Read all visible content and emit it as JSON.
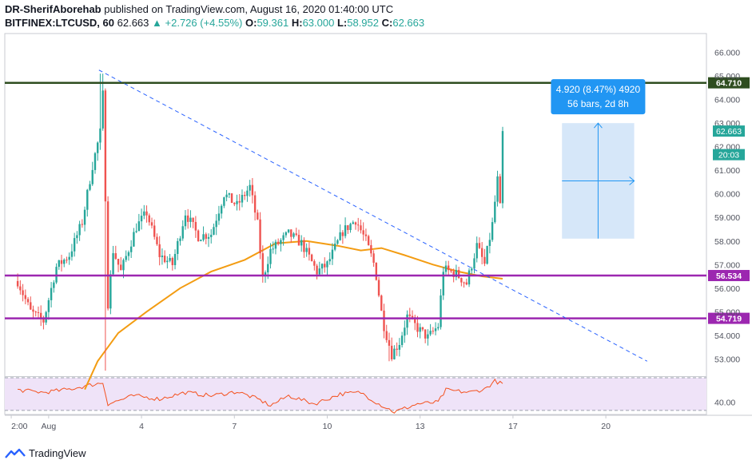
{
  "header": {
    "author": "DR-SherifAborehab",
    "published_text": "published on TradingView.com, August 16, 2020 01:40:00 UTC",
    "symbol": "BITFINEX:LTCUSD, 60",
    "last": "62.663",
    "arrow": "▲",
    "change": "+2.726 (+4.55%)",
    "o_label": "O:",
    "o_value": "59.361",
    "h_label": "H:",
    "h_value": "63.000",
    "l_label": "L:",
    "l_value": "58.952",
    "c_label": "C:",
    "c_value": "62.663"
  },
  "footer": {
    "brand": "TradingView"
  },
  "colors": {
    "up": "#26a69a",
    "down": "#ef5350",
    "ma": "#f39c12",
    "resistance": "#2e4d1f",
    "support": "#9c27b0",
    "trend": "#2962ff",
    "rsi": "#f4511e",
    "measure_bg": "#cfe3f8",
    "measure_box": "#2196f3"
  },
  "chart_data": {
    "type": "candlestick",
    "title": "BITFINEX:LTCUSD, 60",
    "ylim": [
      52.3,
      66.8
    ],
    "y_ticks": [
      53,
      54,
      55,
      56,
      57,
      58,
      59,
      60,
      61,
      62,
      63,
      64,
      65,
      66
    ],
    "y_tick_labels": [
      "53.000",
      "54.000",
      "55.000",
      "56.000",
      "57.000",
      "58.000",
      "59.000",
      "60.000",
      "61.000",
      "62.000",
      "63.000",
      "64.000",
      "65.000",
      "66.000"
    ],
    "x_range_hours": [
      -10,
      534
    ],
    "x_tick_labels": [
      {
        "label": "2:00",
        "hours": -5
      },
      {
        "label": "Aug",
        "hours": 24
      },
      {
        "label": "4",
        "hours": 96
      },
      {
        "label": "7",
        "hours": 168
      },
      {
        "label": "10",
        "hours": 240
      },
      {
        "label": "13",
        "hours": 312
      },
      {
        "label": "17",
        "hours": 384
      },
      {
        "label": "20",
        "hours": 456
      }
    ],
    "candles": {
      "interval_hours": 1,
      "anchors": [
        {
          "h": 0,
          "p": 56.3
        },
        {
          "h": 10,
          "p": 55.0
        },
        {
          "h": 20,
          "p": 54.6
        },
        {
          "h": 30,
          "p": 56.9
        },
        {
          "h": 40,
          "p": 57.4
        },
        {
          "h": 50,
          "p": 58.8
        },
        {
          "h": 58,
          "p": 61.2
        },
        {
          "h": 64,
          "p": 62.6
        },
        {
          "h": 67,
          "p": 65.0
        },
        {
          "h": 69,
          "p": 54.8
        },
        {
          "h": 74,
          "p": 57.6
        },
        {
          "h": 80,
          "p": 56.7
        },
        {
          "h": 92,
          "p": 58.6
        },
        {
          "h": 100,
          "p": 59.2
        },
        {
          "h": 110,
          "p": 57.4
        },
        {
          "h": 120,
          "p": 57.0
        },
        {
          "h": 130,
          "p": 59.2
        },
        {
          "h": 140,
          "p": 58.2
        },
        {
          "h": 150,
          "p": 58.3
        },
        {
          "h": 160,
          "p": 60.0
        },
        {
          "h": 170,
          "p": 59.5
        },
        {
          "h": 180,
          "p": 60.3
        },
        {
          "h": 186,
          "p": 58.7
        },
        {
          "h": 190,
          "p": 56.4
        },
        {
          "h": 196,
          "p": 57.6
        },
        {
          "h": 210,
          "p": 58.3
        },
        {
          "h": 220,
          "p": 57.9
        },
        {
          "h": 232,
          "p": 56.7
        },
        {
          "h": 240,
          "p": 57.0
        },
        {
          "h": 252,
          "p": 58.4
        },
        {
          "h": 262,
          "p": 58.9
        },
        {
          "h": 270,
          "p": 58.0
        },
        {
          "h": 277,
          "p": 56.9
        },
        {
          "h": 283,
          "p": 54.6
        },
        {
          "h": 290,
          "p": 53.2
        },
        {
          "h": 296,
          "p": 53.7
        },
        {
          "h": 302,
          "p": 54.8
        },
        {
          "h": 310,
          "p": 54.3
        },
        {
          "h": 318,
          "p": 53.9
        },
        {
          "h": 326,
          "p": 54.4
        },
        {
          "h": 330,
          "p": 56.8
        },
        {
          "h": 340,
          "p": 56.6
        },
        {
          "h": 348,
          "p": 56.2
        },
        {
          "h": 356,
          "p": 57.8
        },
        {
          "h": 362,
          "p": 57.0
        },
        {
          "h": 368,
          "p": 58.7
        },
        {
          "h": 372,
          "p": 60.6
        },
        {
          "h": 374,
          "p": 59.4
        },
        {
          "h": 376,
          "p": 62.663
        }
      ],
      "last_close": 62.663,
      "session_high": 65.1,
      "session_low": 52.9
    },
    "moving_average": {
      "points": [
        {
          "h": 52,
          "p": 51.7
        },
        {
          "h": 62,
          "p": 52.9
        },
        {
          "h": 78,
          "p": 54.1
        },
        {
          "h": 100,
          "p": 55.0
        },
        {
          "h": 126,
          "p": 56.0
        },
        {
          "h": 150,
          "p": 56.7
        },
        {
          "h": 176,
          "p": 57.2
        },
        {
          "h": 200,
          "p": 57.9
        },
        {
          "h": 224,
          "p": 58.0
        },
        {
          "h": 248,
          "p": 57.8
        },
        {
          "h": 266,
          "p": 57.6
        },
        {
          "h": 282,
          "p": 57.7
        },
        {
          "h": 300,
          "p": 57.4
        },
        {
          "h": 322,
          "p": 57.0
        },
        {
          "h": 342,
          "p": 56.7
        },
        {
          "h": 360,
          "p": 56.5
        },
        {
          "h": 376,
          "p": 56.4
        }
      ]
    },
    "horizontal_levels": [
      {
        "name": "resistance",
        "price": 64.71,
        "label": "64.710"
      },
      {
        "name": "support-upper",
        "price": 56.534,
        "label": "56.534"
      },
      {
        "name": "support-lower",
        "price": 54.719,
        "label": "54.719"
      }
    ],
    "trendline": {
      "from": {
        "h": 63,
        "p": 65.25
      },
      "to": {
        "h": 488,
        "p": 52.9
      }
    },
    "price_labels": [
      {
        "label": "62.663",
        "price": 62.663
      },
      {
        "label": "20:03",
        "price": 61.9
      }
    ],
    "measure": {
      "line1": "4.920 (8.47%) 4920",
      "line2": "56 bars, 2d 8h",
      "from_h": 422,
      "to_h": 478,
      "from_p": 58.1,
      "to_p": 63.0
    },
    "rsi": {
      "ylim": [
        25,
        70
      ],
      "band": [
        30,
        70
      ],
      "tick_label": "40.00",
      "tick_value": 40,
      "anchors": [
        {
          "h": 0,
          "p": 55
        },
        {
          "h": 20,
          "p": 52
        },
        {
          "h": 40,
          "p": 56
        },
        {
          "h": 66,
          "p": 64
        },
        {
          "h": 70,
          "p": 38
        },
        {
          "h": 90,
          "p": 48
        },
        {
          "h": 110,
          "p": 44
        },
        {
          "h": 130,
          "p": 52
        },
        {
          "h": 150,
          "p": 48
        },
        {
          "h": 170,
          "p": 53
        },
        {
          "h": 186,
          "p": 44
        },
        {
          "h": 196,
          "p": 36
        },
        {
          "h": 210,
          "p": 48
        },
        {
          "h": 230,
          "p": 38
        },
        {
          "h": 250,
          "p": 50
        },
        {
          "h": 266,
          "p": 52
        },
        {
          "h": 280,
          "p": 38
        },
        {
          "h": 292,
          "p": 28
        },
        {
          "h": 310,
          "p": 38
        },
        {
          "h": 326,
          "p": 40
        },
        {
          "h": 332,
          "p": 55
        },
        {
          "h": 350,
          "p": 52
        },
        {
          "h": 362,
          "p": 56
        },
        {
          "h": 370,
          "p": 66
        },
        {
          "h": 376,
          "p": 62
        }
      ]
    }
  }
}
